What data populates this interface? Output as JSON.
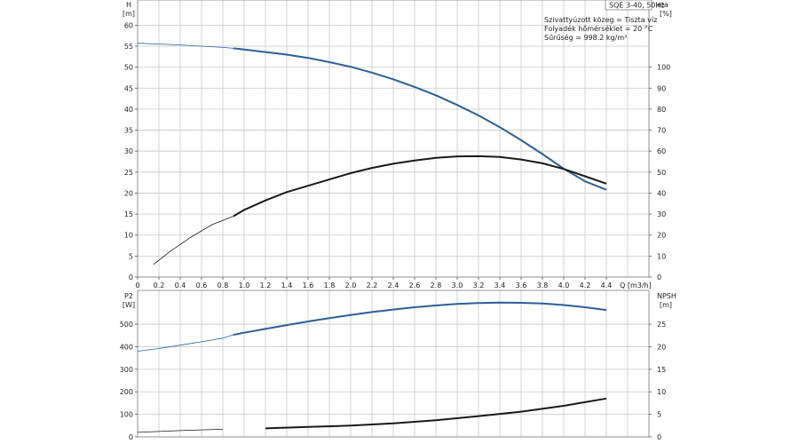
{
  "chart_data": [
    {
      "type": "line",
      "title": "SQE 3-40, 50Hz",
      "notes": [
        "Szivattyúzott közeg = Tiszta víz",
        "Folyadék hőmérséklet = 20 °C",
        "Sűrűség = 998.2 kg/m³"
      ],
      "xlabel": "Q [m3/h]",
      "ylabel": "H",
      "ylabel_unit": "[m]",
      "y2label": "eta",
      "y2label_unit": "[%]",
      "xlim": [
        0,
        4.8
      ],
      "ylim": [
        0,
        66
      ],
      "y2lim": [
        0,
        132
      ],
      "x_ticks": [
        "0",
        "0.2",
        "0.4",
        "0.6",
        "0.8",
        "1.0",
        "1.2",
        "1.4",
        "1.6",
        "1.8",
        "2.0",
        "2.2",
        "2.4",
        "2.6",
        "2.8",
        "3.0",
        "3.2",
        "3.4",
        "3.6",
        "3.8",
        "4.0",
        "4.2",
        "4.4"
      ],
      "y_ticks": [
        "0",
        "5",
        "10",
        "15",
        "20",
        "25",
        "30",
        "35",
        "40",
        "45",
        "50",
        "55",
        "60"
      ],
      "y2_ticks": [
        "0",
        "10",
        "20",
        "30",
        "40",
        "50",
        "60",
        "70",
        "80",
        "90",
        "100"
      ],
      "grid": true,
      "series": [
        {
          "color": "#2e5f98",
          "axis": "left",
          "x": [
            0,
            0.2,
            0.4,
            0.6,
            0.8,
            0.9,
            1.0,
            1.2,
            1.4,
            1.6,
            1.8,
            2.0,
            2.2,
            2.4,
            2.6,
            2.8,
            3.0,
            3.2,
            3.4,
            3.6,
            3.8,
            4.0,
            4.2,
            4.4
          ],
          "values": [
            55.7,
            55.5,
            55.3,
            55.0,
            54.7,
            54.5,
            54.2,
            53.6,
            53.0,
            52.2,
            51.2,
            50.1,
            48.7,
            47.1,
            45.3,
            43.3,
            41.0,
            38.5,
            35.7,
            32.6,
            29.3,
            25.8,
            22.8,
            20.8
          ]
        },
        {
          "color": "#1a1a1a",
          "axis": "right",
          "x": [
            0.15,
            0.3,
            0.5,
            0.7,
            0.9,
            1.0,
            1.2,
            1.4,
            1.6,
            1.8,
            2.0,
            2.2,
            2.4,
            2.6,
            2.8,
            3.0,
            3.2,
            3.4,
            3.6,
            3.8,
            4.0,
            4.2,
            4.4
          ],
          "values": [
            6,
            12,
            19,
            25,
            29,
            32,
            36.5,
            40.5,
            43.5,
            46.5,
            49.5,
            52,
            54,
            55.5,
            56.8,
            57.5,
            57.6,
            57.2,
            56,
            54.2,
            51.5,
            48,
            44.5
          ]
        }
      ]
    },
    {
      "type": "line",
      "xlabel": "",
      "ylabel": "P2",
      "ylabel_unit": "[W]",
      "y2label": "NPSH",
      "y2label_unit": "[m]",
      "xlim": [
        0,
        4.8
      ],
      "ylim": [
        0,
        650
      ],
      "y2lim": [
        0,
        32.5
      ],
      "y_ticks": [
        "0",
        "100",
        "200",
        "300",
        "400",
        "500"
      ],
      "y2_ticks": [
        "0",
        "5",
        "10",
        "15",
        "20",
        "25"
      ],
      "grid": true,
      "series": [
        {
          "color": "#2e5f98",
          "axis": "left",
          "x": [
            0,
            0.2,
            0.4,
            0.6,
            0.8,
            0.9,
            1.0,
            1.2,
            1.4,
            1.6,
            1.8,
            2.0,
            2.2,
            2.4,
            2.6,
            2.8,
            3.0,
            3.2,
            3.4,
            3.6,
            3.8,
            4.0,
            4.2,
            4.4
          ],
          "values": [
            380,
            392,
            407,
            422,
            438,
            453,
            462,
            479,
            496,
            512,
            527,
            541,
            554,
            565,
            575,
            583,
            590,
            594,
            596,
            595,
            592,
            585,
            575,
            563
          ]
        },
        {
          "color": "#1a1a1a",
          "axis": "right",
          "x": [
            0,
            0.4,
            0.8,
            1.2,
            1.6,
            2.0,
            2.4,
            2.8,
            3.2,
            3.6,
            4.0,
            4.2,
            4.4
          ],
          "values": [
            1.0,
            1.4,
            1.7,
            1.9,
            2.2,
            2.5,
            3.0,
            3.7,
            4.6,
            5.6,
            6.9,
            7.7,
            8.5
          ]
        }
      ]
    }
  ]
}
